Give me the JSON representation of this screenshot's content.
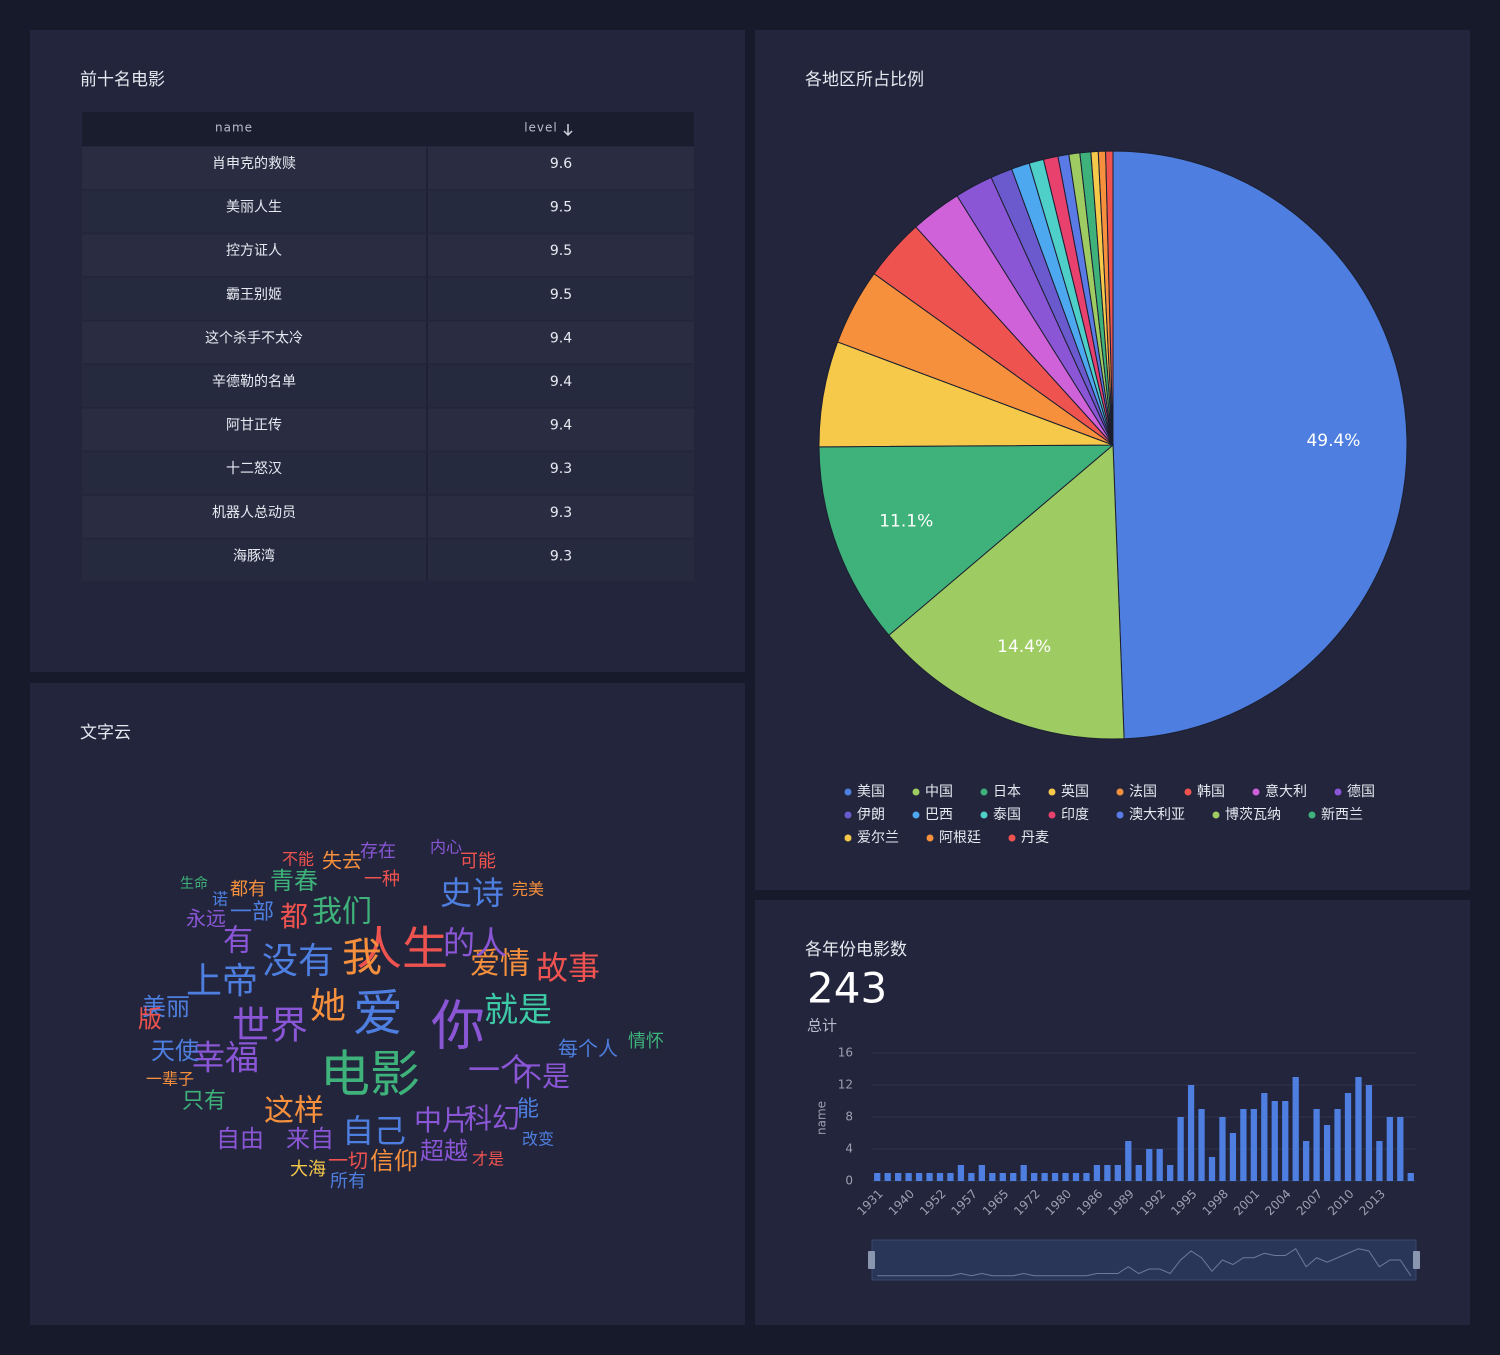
{
  "table_panel": {
    "title": "前十名电影",
    "columns": [
      "name",
      "level"
    ],
    "rows": [
      [
        "肖申克的救赎",
        9.6
      ],
      [
        "美丽人生",
        9.5
      ],
      [
        "控方证人",
        9.5
      ],
      [
        "霸王别姬",
        9.5
      ],
      [
        "这个杀手不太冷",
        9.4
      ],
      [
        "辛德勒的名单",
        9.4
      ],
      [
        "阿甘正传",
        9.4
      ],
      [
        "十二怒汉",
        9.3
      ],
      [
        "机器人总动员",
        9.3
      ],
      [
        "海豚湾",
        9.3
      ]
    ]
  },
  "wordcloud": {
    "title": "文字云",
    "words": [
      {
        "text": "电影",
        "color": "#3eb27a"
      },
      {
        "text": "你",
        "color": "#8a56d6"
      },
      {
        "text": "爱",
        "color": "#4e7fe0"
      },
      {
        "text": "人生",
        "color": "#ef5350"
      },
      {
        "text": "我",
        "color": "#f6903d"
      },
      {
        "text": "没有",
        "color": "#4e7fe0"
      },
      {
        "text": "世界",
        "color": "#8a56d6"
      },
      {
        "text": "她",
        "color": "#f6903d"
      },
      {
        "text": "上帝",
        "color": "#4e7fe0"
      },
      {
        "text": "幸福",
        "color": "#8a56d6"
      },
      {
        "text": "美丽",
        "color": "#4e7fe0"
      },
      {
        "text": "就是",
        "color": "#3ec9a6"
      },
      {
        "text": "故事",
        "color": "#ef5350"
      },
      {
        "text": "爱情",
        "color": "#f6903d"
      },
      {
        "text": "史诗",
        "color": "#4e7fe0"
      },
      {
        "text": "我们",
        "color": "#3eb27a"
      },
      {
        "text": "青春",
        "color": "#3eb27a"
      },
      {
        "text": "一个",
        "color": "#8a56d6"
      },
      {
        "text": "自己",
        "color": "#4e7fe0"
      },
      {
        "text": "自由",
        "color": "#8a56d6"
      },
      {
        "text": "来自",
        "color": "#8a56d6"
      },
      {
        "text": "这样",
        "color": "#f6903d"
      },
      {
        "text": "中片",
        "color": "#8a56d6"
      },
      {
        "text": "超越",
        "color": "#8a56d6"
      },
      {
        "text": "科幻",
        "color": "#8a56d6"
      },
      {
        "text": "不是",
        "color": "#8a56d6"
      },
      {
        "text": "天使",
        "color": "#4e7fe0"
      },
      {
        "text": "只有",
        "color": "#3eb27a"
      },
      {
        "text": "一辈子",
        "color": "#f6903d"
      },
      {
        "text": "一切",
        "color": "#ef5350"
      },
      {
        "text": "信仰",
        "color": "#f6903d"
      },
      {
        "text": "大海",
        "color": "#f6c94a"
      },
      {
        "text": "所有",
        "color": "#4e7fe0"
      },
      {
        "text": "情怀",
        "color": "#3eb27a"
      },
      {
        "text": "失去",
        "color": "#f6903d"
      },
      {
        "text": "存在",
        "color": "#8a56d6"
      },
      {
        "text": "一种",
        "color": "#ef5350"
      },
      {
        "text": "可能",
        "color": "#ef5350"
      },
      {
        "text": "内心",
        "color": "#8a56d6"
      },
      {
        "text": "都有",
        "color": "#f6903d"
      },
      {
        "text": "不能",
        "color": "#ef5350"
      },
      {
        "text": "永远",
        "color": "#8a56d6"
      },
      {
        "text": "有",
        "color": "#8a56d6"
      },
      {
        "text": "一部",
        "color": "#4e7fe0"
      },
      {
        "text": "都",
        "color": "#ef5350"
      },
      {
        "text": "的人",
        "color": "#8a56d6"
      },
      {
        "text": "能",
        "color": "#4e7fe0"
      },
      {
        "text": "改变",
        "color": "#4e7fe0"
      },
      {
        "text": "才是",
        "color": "#ef5350"
      },
      {
        "text": "每个人",
        "color": "#4e7fe0"
      },
      {
        "text": "版",
        "color": "#ef5350"
      },
      {
        "text": "诺",
        "color": "#4e7fe0"
      },
      {
        "text": "生命",
        "color": "#3eb27a"
      },
      {
        "text": "完美",
        "color": "#f6903d"
      }
    ]
  },
  "chart_data": [
    {
      "type": "pie",
      "title": "各地区所占比例",
      "categories": [
        "美国",
        "中国",
        "日本",
        "英国",
        "法国",
        "韩国",
        "意大利",
        "德国",
        "伊朗",
        "巴西",
        "泰国",
        "印度",
        "澳大利亚",
        "博茨瓦纳",
        "新西兰",
        "爱尔兰",
        "阿根廷",
        "丹麦"
      ],
      "values": [
        49.4,
        14.4,
        11.1,
        5.8,
        4.2,
        3.4,
        2.8,
        2.1,
        1.2,
        1.0,
        0.8,
        0.8,
        0.6,
        0.6,
        0.6,
        0.4,
        0.4,
        0.4
      ],
      "value_labels": [
        "49.4%",
        "14.4%",
        "11.1%",
        null,
        null,
        null,
        null,
        null,
        null,
        null,
        null,
        null,
        null,
        null,
        null,
        null,
        null,
        null
      ],
      "colors": [
        "#4e7fe0",
        "#9fcc62",
        "#3eb27a",
        "#f6c94a",
        "#f6903d",
        "#ef5350",
        "#d062d9",
        "#8a56d6",
        "#6b5acd",
        "#4ea8f0",
        "#4ed0c9",
        "#e8416e",
        "#5a7be6",
        "#9fcc62",
        "#3eb27a",
        "#f6c94a",
        "#f6903d",
        "#ef5350"
      ],
      "legend": "bottom"
    },
    {
      "type": "bar",
      "title": "各年份电影数",
      "total": 243,
      "total_label": "总计",
      "y_label": "name",
      "categories": [
        "1931",
        null,
        null,
        "1940",
        null,
        null,
        "1952",
        null,
        null,
        "1957",
        null,
        null,
        "1965",
        null,
        null,
        "1972",
        null,
        null,
        "1980",
        null,
        null,
        "1986",
        null,
        null,
        "1989",
        null,
        null,
        "1992",
        null,
        null,
        "1995",
        null,
        null,
        "1998",
        null,
        null,
        "2001",
        null,
        null,
        "2004",
        null,
        null,
        "2007",
        null,
        null,
        "2010",
        null,
        null,
        "2013",
        null,
        null,
        null
      ],
      "values": [
        1,
        1,
        1,
        1,
        1,
        1,
        1,
        1,
        2,
        1,
        2,
        1,
        1,
        1,
        2,
        1,
        1,
        1,
        1,
        1,
        1,
        2,
        2,
        2,
        5,
        2,
        4,
        4,
        2,
        8,
        12,
        9,
        3,
        8,
        6,
        9,
        9,
        11,
        10,
        10,
        13,
        5,
        9,
        7,
        9,
        11,
        13,
        12,
        5,
        8,
        8,
        1
      ],
      "color": "#4e7fe0",
      "ylim": [
        0,
        16
      ],
      "yticks": [
        0,
        4,
        8,
        12,
        16
      ],
      "grid": true
    }
  ]
}
